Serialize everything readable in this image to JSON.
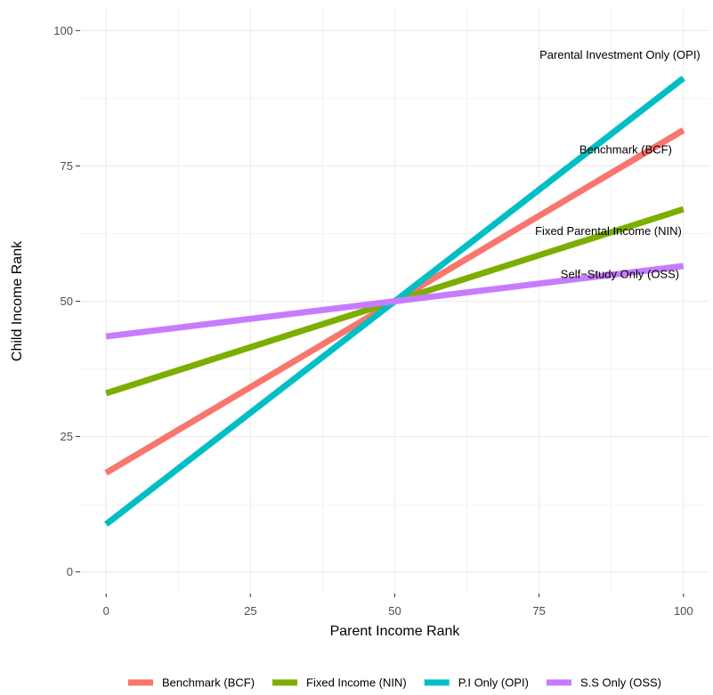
{
  "chart_data": {
    "type": "line",
    "title": "",
    "xlabel": "Parent Income Rank",
    "ylabel": "Child Income Rank",
    "xlim": [
      -4.5,
      104.5
    ],
    "ylim": [
      -4,
      104
    ],
    "x_ticks": [
      0,
      25,
      50,
      75,
      100
    ],
    "y_ticks": [
      0,
      25,
      50,
      75,
      100
    ],
    "grid": true,
    "legend_position": "bottom",
    "series": [
      {
        "name": "Benchmark (BCF)",
        "color": "#F8766D",
        "x": [
          0,
          100
        ],
        "y": [
          18.3,
          81.6
        ]
      },
      {
        "name": "Fixed Income (NIN)",
        "color": "#7CAE00",
        "x": [
          0,
          100
        ],
        "y": [
          33.0,
          67.0
        ]
      },
      {
        "name": "P.I Only (OPI)",
        "color": "#00BFC4",
        "x": [
          0,
          100
        ],
        "y": [
          8.8,
          91.2
        ]
      },
      {
        "name": "S.S Only (OSS)",
        "color": "#C77CFF",
        "x": [
          0,
          100
        ],
        "y": [
          43.5,
          56.5
        ]
      }
    ],
    "annotations": [
      {
        "text": "Parental Investment Only (OPI)",
        "x": 89,
        "y": 95.5
      },
      {
        "text": "Benchmark (BCF)",
        "x": 90,
        "y": 78
      },
      {
        "text": "Fixed Parental Income (NIN)",
        "x": 87,
        "y": 63
      },
      {
        "text": "Self−Study Only (OSS)",
        "x": 89,
        "y": 55
      }
    ]
  }
}
